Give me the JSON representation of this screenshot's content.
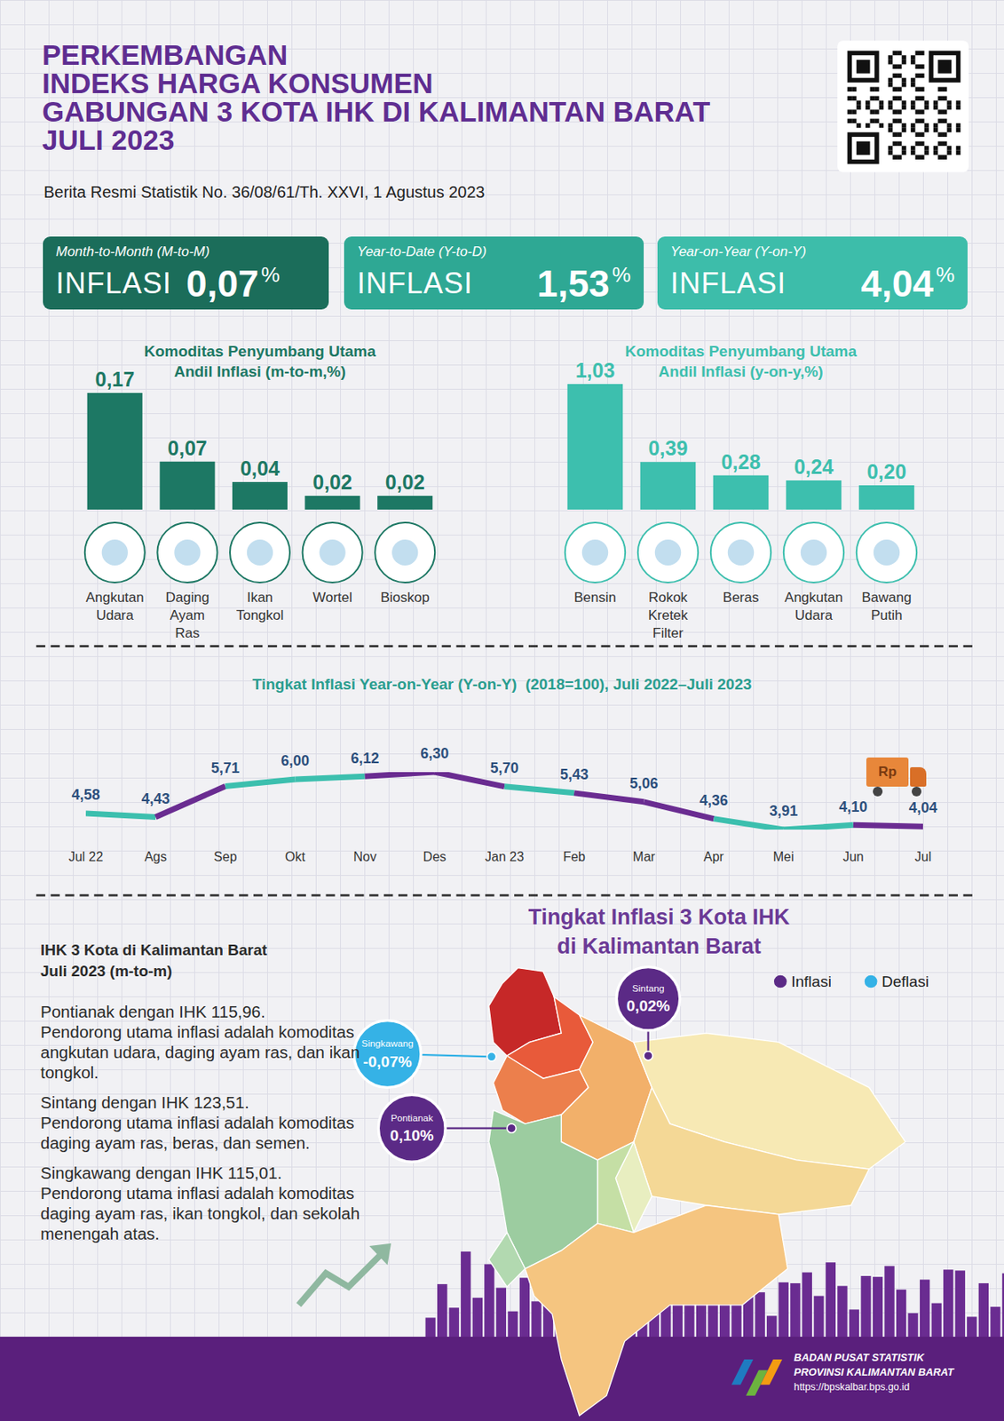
{
  "header": {
    "title_lines": [
      "PERKEMBANGAN",
      "INDEKS HARGA KONSUMEN",
      "GABUNGAN 3 KOTA IHK DI KALIMANTAN BARAT",
      "JULI 2023"
    ],
    "subtitle": "Berita Resmi Statistik No. 36/08/61/Th. XXVI, 1 Agustus 2023"
  },
  "summary": [
    {
      "label": "Month-to-Month (M-to-M)",
      "text": "INFLASI",
      "value": "0,07",
      "unit": "%",
      "color": "#1b6d5a"
    },
    {
      "label": "Year-to-Date (Y-to-D)",
      "text": "INFLASI",
      "value": "1,53",
      "unit": "%",
      "color": "#2ea894"
    },
    {
      "label": "Year-on-Year (Y-on-Y)",
      "text": "INFLASI",
      "value": "4,04",
      "unit": "%",
      "color": "#3dbdaa"
    }
  ],
  "chart_data": [
    {
      "type": "bar",
      "title": "Komoditas Penyumbang Utama Andil Inflasi (m-to-m,%)",
      "categories": [
        "Angkutan Udara",
        "Daging Ayam Ras",
        "Ikan Tongkol",
        "Wortel",
        "Bioskop"
      ],
      "values": [
        0.17,
        0.07,
        0.04,
        0.02,
        0.02
      ],
      "value_labels": [
        "0,17",
        "0,07",
        "0,04",
        "0,02",
        "0,02"
      ],
      "color": "#1d7864",
      "ylim": [
        0,
        0.17
      ],
      "data_labels": true,
      "tick_labels": "x",
      "grid": false
    },
    {
      "type": "bar",
      "title": "Komoditas Penyumbang Utama Andil Inflasi (y-on-y,%)",
      "categories": [
        "Bensin",
        "Rokok Kretek Filter",
        "Beras",
        "Angkutan Udara",
        "Bawang Putih"
      ],
      "values": [
        1.03,
        0.39,
        0.28,
        0.24,
        0.2
      ],
      "value_labels": [
        "1,03",
        "0,39",
        "0,28",
        "0,24",
        "0,20"
      ],
      "color": "#3dbfae",
      "ylim": [
        0,
        1.03
      ],
      "data_labels": true,
      "tick_labels": "x",
      "grid": false
    },
    {
      "type": "line",
      "title": "Tingkat Inflasi Year-on-Year (Y-on-Y)  (2018=100), Juli 2022–Juli 2023",
      "categories": [
        "Jul 22",
        "Ags",
        "Sep",
        "Okt",
        "Nov",
        "Des",
        "Jan 23",
        "Feb",
        "Mar",
        "Apr",
        "Mei",
        "Jun",
        "Jul"
      ],
      "values": [
        4.58,
        4.43,
        5.71,
        6.0,
        6.12,
        6.3,
        5.7,
        5.43,
        5.06,
        4.36,
        3.91,
        4.1,
        4.04
      ],
      "value_labels": [
        "4,58",
        "4,43",
        "5,71",
        "6,00",
        "6,12",
        "6,30",
        "5,70",
        "5,43",
        "5,06",
        "4,36",
        "3,91",
        "4,10",
        "4,04"
      ],
      "colors": [
        "#3cbfae",
        "#6a2c91",
        "#3cbfae",
        "#3cbfae",
        "#6a2c91",
        "#6a2c91",
        "#3cbfae",
        "#6a2c91",
        "#6a2c91",
        "#3cbfae",
        "#3cbfae",
        "#6a2c91"
      ],
      "ylim": [
        3.91,
        6.3
      ],
      "data_labels": true,
      "tick_labels": "x",
      "grid": false,
      "annotations": [
        {
          "text": "Rp"
        }
      ]
    }
  ],
  "ihk_text": {
    "heading": [
      "IHK 3 Kota di Kalimantan Barat",
      "Juli 2023 (m-to-m)"
    ],
    "paragraphs": [
      {
        "title": "Pontianak dengan IHK 115,96.",
        "text": "Pendorong utama inflasi adalah komoditas angkutan udara, daging ayam ras, dan ikan tongkol."
      },
      {
        "title": "Sintang dengan IHK 123,51.",
        "text": "Pendorong utama inflasi adalah komoditas daging ayam ras, beras, dan semen."
      },
      {
        "title": "Singkawang dengan IHK 115,01.",
        "text": "Pendorong utama inflasi adalah komoditas daging ayam ras, ikan tongkol, dan sekolah menengah atas."
      }
    ]
  },
  "map": {
    "title_lines": [
      "Tingkat Inflasi 3 Kota IHK",
      "di Kalimantan Barat"
    ],
    "legend": [
      {
        "label": "Inflasi",
        "color": "#5b2a86"
      },
      {
        "label": "Deflasi",
        "color": "#35b2e6"
      }
    ],
    "cities": [
      {
        "name": "Pontianak",
        "value": "0,10%",
        "status": "Inflasi"
      },
      {
        "name": "Sintang",
        "value": "0,02%",
        "status": "Inflasi"
      },
      {
        "name": "Singkawang",
        "value": "-0,07%",
        "status": "Deflasi"
      }
    ]
  },
  "footer": {
    "lines": [
      "BADAN PUSAT STATISTIK",
      "PROVINSI KALIMANTAN BARAT",
      "https://bpskalbar.bps.go.id"
    ]
  }
}
